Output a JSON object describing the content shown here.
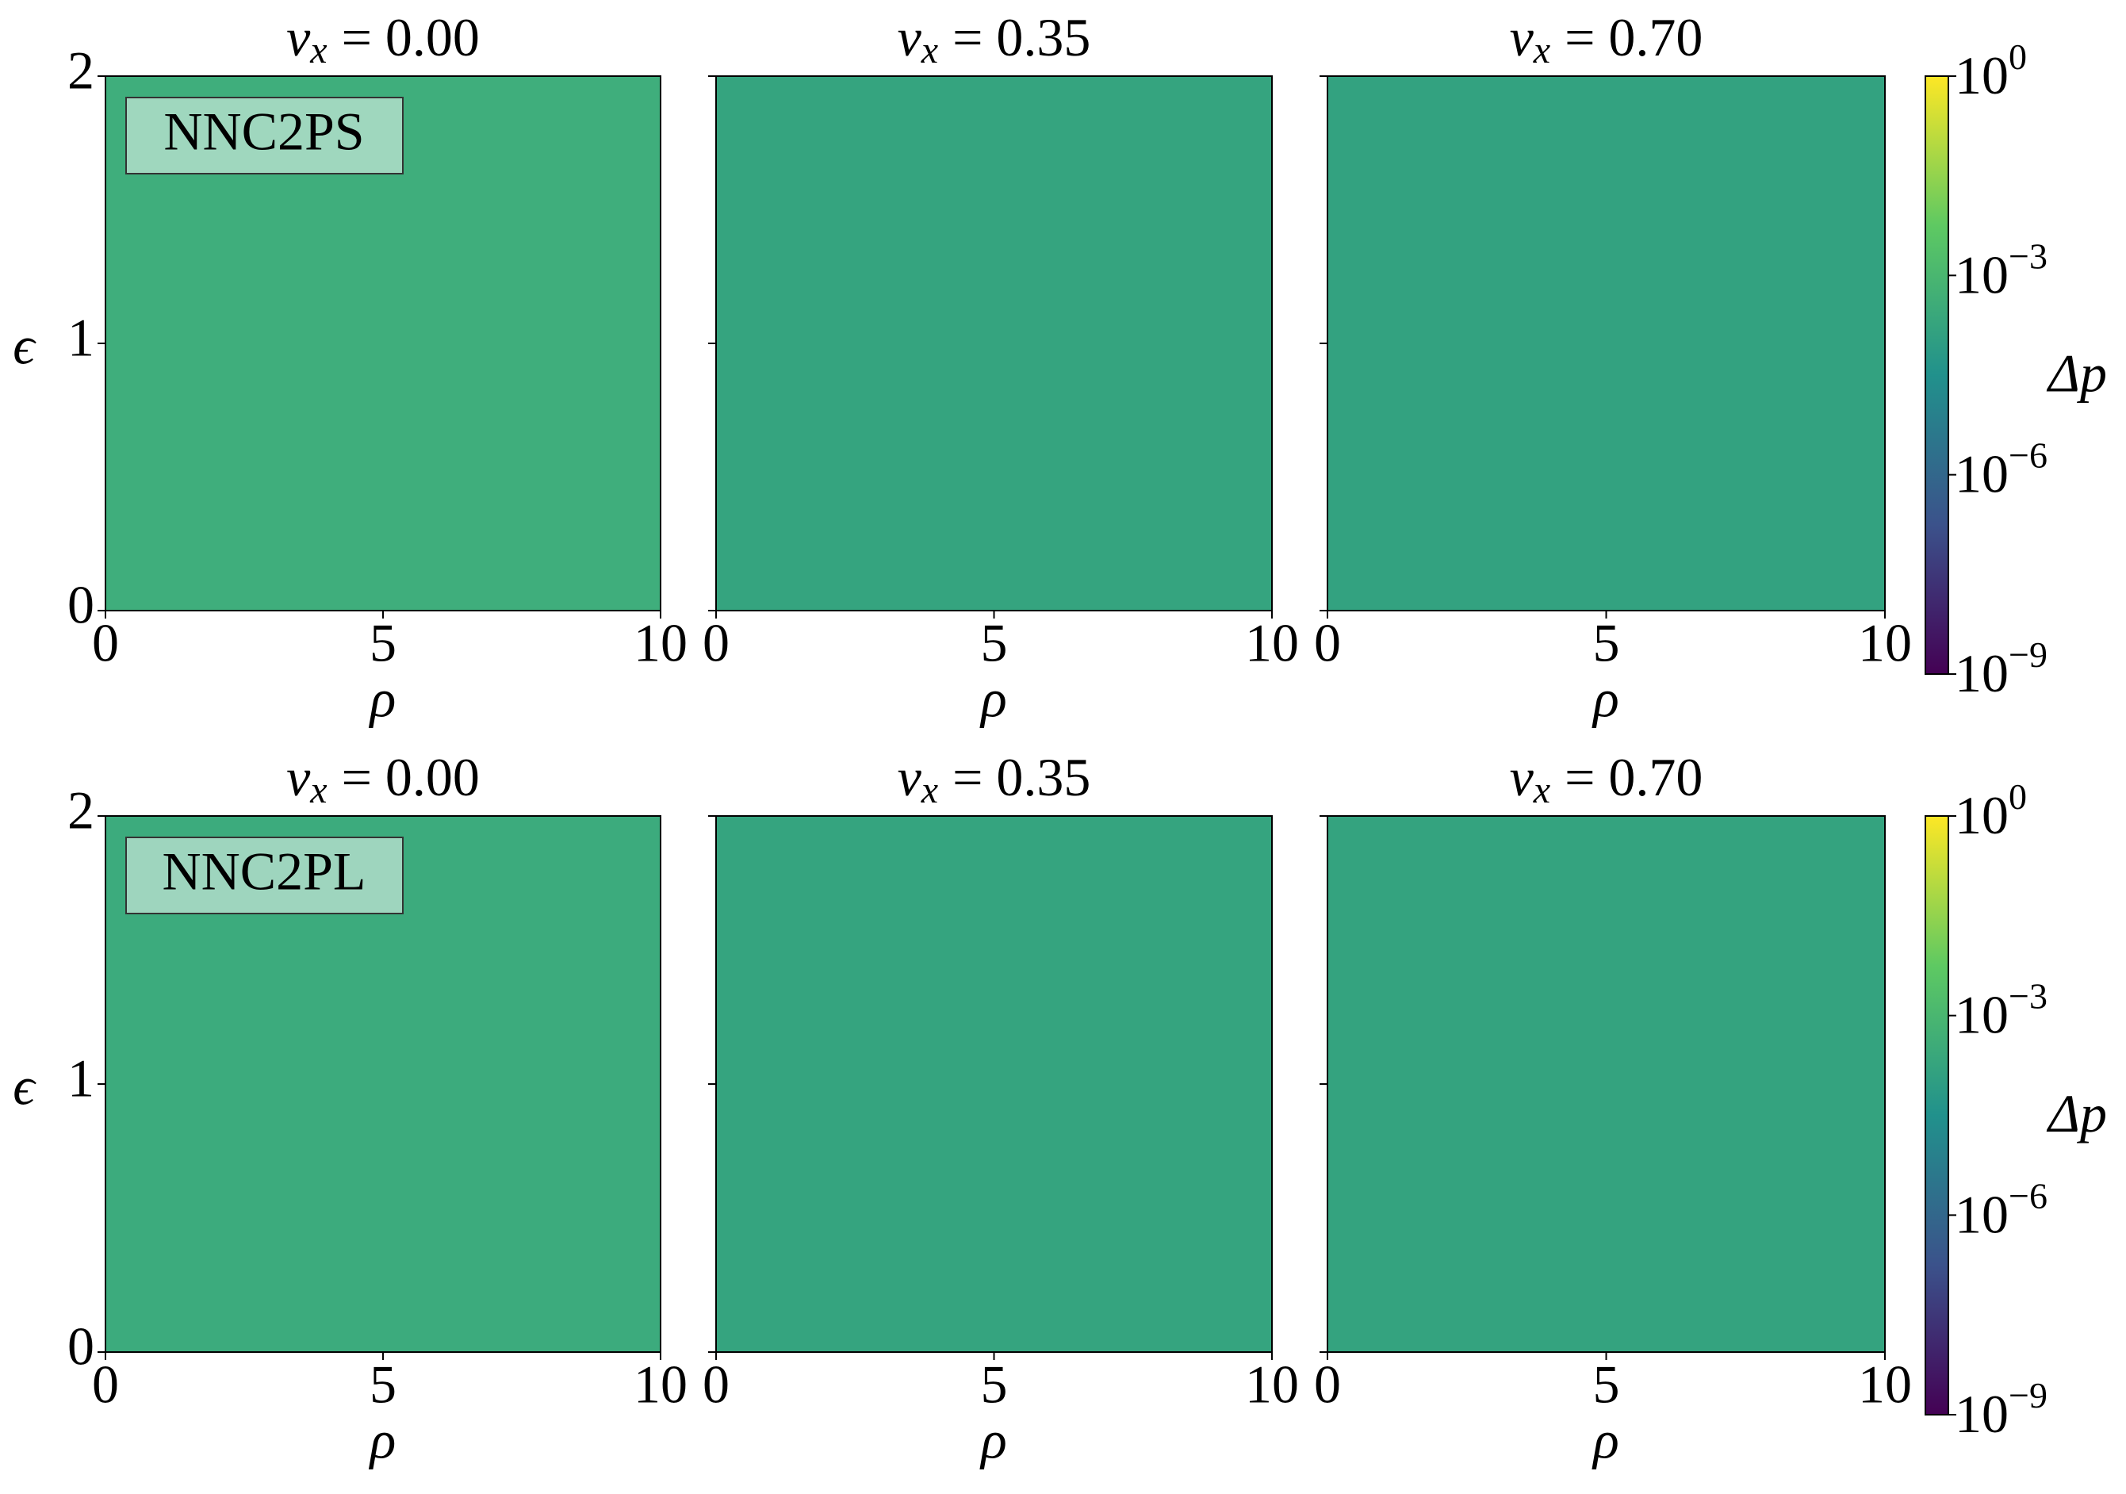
{
  "chart_data": [
    {
      "type": "heatmap",
      "title": {
        "var": "v",
        "sub": "x",
        "rest": "= 0.00"
      },
      "annotation": "NNC2PS",
      "xlabel": "ρ",
      "ylabel": "ϵ",
      "xlim": [
        0,
        10
      ],
      "xticks": [
        0,
        5,
        10
      ],
      "ylim": [
        0,
        2
      ],
      "yticks": [
        0,
        1,
        2
      ],
      "show_ytick_labels": true,
      "color": "#3fae7c"
    },
    {
      "type": "heatmap",
      "title": {
        "var": "v",
        "sub": "x",
        "rest": "= 0.35"
      },
      "xlabel": "ρ",
      "xlim": [
        0,
        10
      ],
      "xticks": [
        0,
        5,
        10
      ],
      "ylim": [
        0,
        2
      ],
      "yticks": [
        0,
        1,
        2
      ],
      "show_ytick_labels": false,
      "color": "#35a47f"
    },
    {
      "type": "heatmap",
      "title": {
        "var": "v",
        "sub": "x",
        "rest": "= 0.70"
      },
      "xlabel": "ρ",
      "xlim": [
        0,
        10
      ],
      "xticks": [
        0,
        5,
        10
      ],
      "ylim": [
        0,
        2
      ],
      "yticks": [
        0,
        1,
        2
      ],
      "show_ytick_labels": false,
      "color": "#33a280"
    },
    {
      "type": "heatmap",
      "title": {
        "var": "v",
        "sub": "x",
        "rest": "= 0.00"
      },
      "annotation": "NNC2PL",
      "xlabel": "ρ",
      "ylabel": "ϵ",
      "xlim": [
        0,
        10
      ],
      "xticks": [
        0,
        5,
        10
      ],
      "ylim": [
        0,
        2
      ],
      "yticks": [
        0,
        1,
        2
      ],
      "show_ytick_labels": true,
      "color": "#3cab7d"
    },
    {
      "type": "heatmap",
      "title": {
        "var": "v",
        "sub": "x",
        "rest": "= 0.35"
      },
      "xlabel": "ρ",
      "xlim": [
        0,
        10
      ],
      "xticks": [
        0,
        5,
        10
      ],
      "ylim": [
        0,
        2
      ],
      "yticks": [
        0,
        1,
        2
      ],
      "show_ytick_labels": false,
      "color": "#35a47f"
    },
    {
      "type": "heatmap",
      "title": {
        "var": "v",
        "sub": "x",
        "rest": "= 0.70"
      },
      "xlabel": "ρ",
      "xlim": [
        0,
        10
      ],
      "xticks": [
        0,
        5,
        10
      ],
      "ylim": [
        0,
        2
      ],
      "yticks": [
        0,
        1,
        2
      ],
      "show_ytick_labels": false,
      "color": "#34a37f"
    }
  ],
  "colorbars": [
    {
      "label": "Δp",
      "log": true,
      "lim": [
        1e-09,
        1
      ],
      "colors": [
        "#440154",
        "#3b528b",
        "#21918c",
        "#5ec962",
        "#fde725"
      ],
      "ticks": [
        {
          "value": 1,
          "base": "10",
          "exponent": "0"
        },
        {
          "value": 0.001,
          "base": "10",
          "exponent": "−3"
        },
        {
          "value": 1e-06,
          "base": "10",
          "exponent": "−6"
        },
        {
          "value": 1e-09,
          "base": "10",
          "exponent": "−9"
        }
      ]
    },
    {
      "label": "Δp",
      "log": true,
      "lim": [
        1e-09,
        1
      ],
      "colors": [
        "#440154",
        "#3b528b",
        "#21918c",
        "#5ec962",
        "#fde725"
      ],
      "ticks": [
        {
          "value": 1,
          "base": "10",
          "exponent": "0"
        },
        {
          "value": 0.001,
          "base": "10",
          "exponent": "−3"
        },
        {
          "value": 1e-06,
          "base": "10",
          "exponent": "−6"
        },
        {
          "value": 1e-09,
          "base": "10",
          "exponent": "−9"
        }
      ]
    }
  ]
}
